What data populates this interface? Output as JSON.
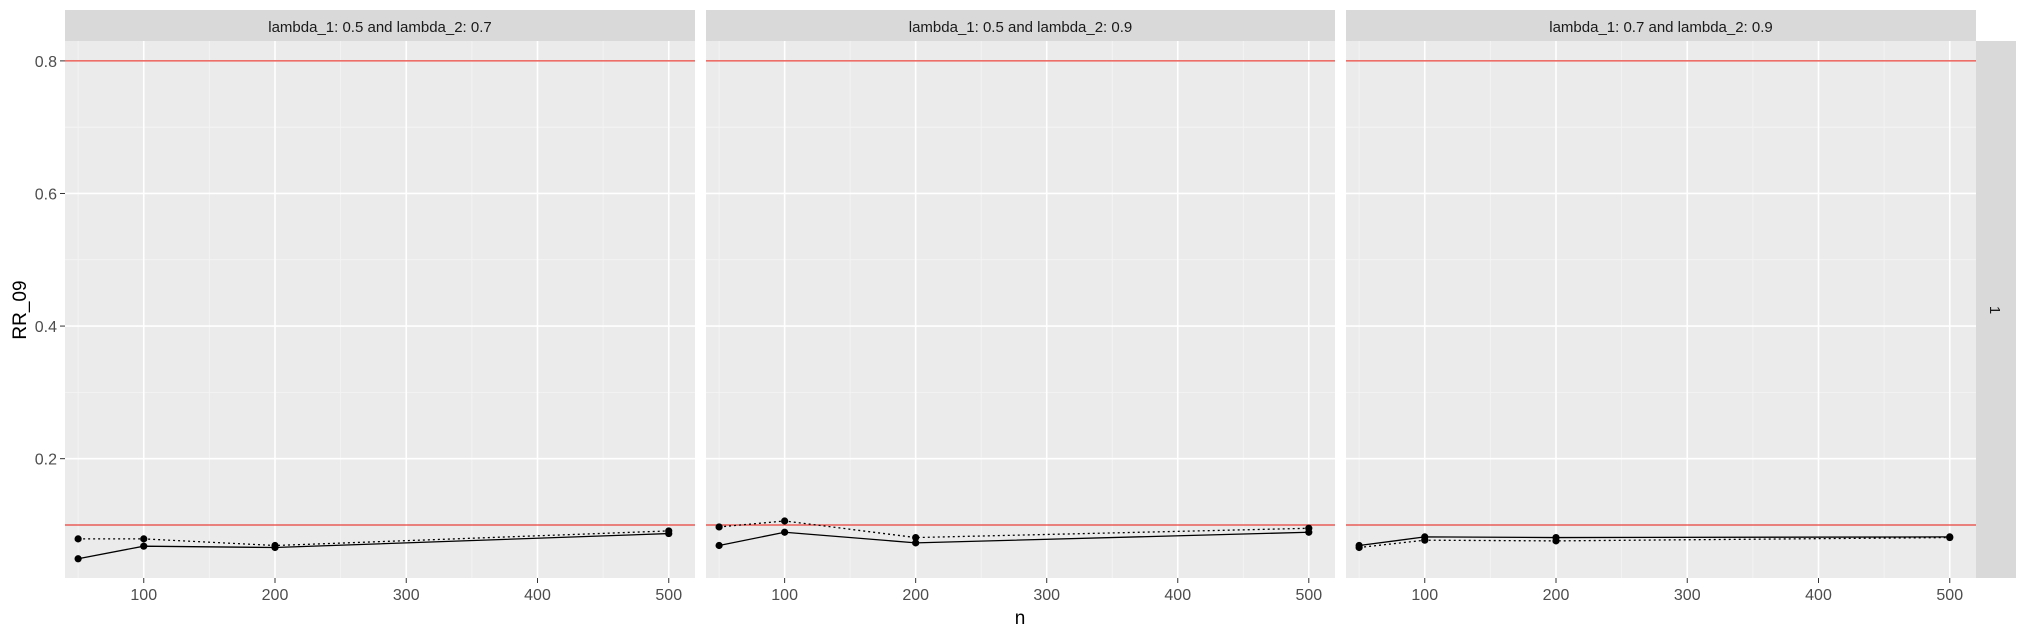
{
  "chart_data": {
    "type": "line",
    "xlabel": "n",
    "ylabel": "RR_09",
    "xlim": [
      40,
      520
    ],
    "ylim": [
      0.02,
      0.83
    ],
    "xticks": [
      100,
      200,
      300,
      400,
      500
    ],
    "yticks": [
      0.2,
      0.4,
      0.6,
      0.8
    ],
    "grid": true,
    "reference_lines": [
      0.1,
      0.8
    ],
    "reference_line_color": "#e8413a",
    "row_strip_label": "1",
    "panels": [
      {
        "title": "lambda_1: 0.5 and lambda_2: 0.7",
        "x": [
          50,
          100,
          200,
          500
        ],
        "series": [
          {
            "linetype": "solid",
            "values": [
              0.049,
              0.068,
              0.066,
              0.087
            ]
          },
          {
            "linetype": "dotted",
            "values": [
              0.079,
              0.079,
              0.069,
              0.091
            ]
          }
        ]
      },
      {
        "title": "lambda_1: 0.5 and lambda_2: 0.9",
        "x": [
          50,
          100,
          200,
          500
        ],
        "series": [
          {
            "linetype": "solid",
            "values": [
              0.069,
              0.089,
              0.073,
              0.089
            ]
          },
          {
            "linetype": "dotted",
            "values": [
              0.097,
              0.106,
              0.081,
              0.095
            ]
          }
        ]
      },
      {
        "title": "lambda_1: 0.7 and lambda_2: 0.9",
        "x": [
          50,
          100,
          200,
          500
        ],
        "series": [
          {
            "linetype": "solid",
            "values": [
              0.069,
              0.082,
              0.081,
              0.082
            ]
          },
          {
            "linetype": "dotted",
            "values": [
              0.066,
              0.077,
              0.076,
              0.081
            ]
          }
        ]
      }
    ]
  }
}
